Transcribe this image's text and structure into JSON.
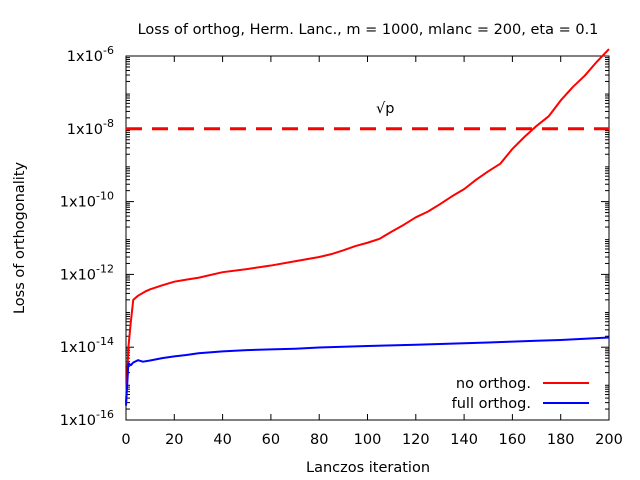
{
  "chart_data": {
    "type": "line",
    "title": "Loss of orthog, Herm. Lanc., m = 1000, mlanc = 200, eta = 0.1",
    "xlabel": "Lanczos iteration",
    "ylabel": "Loss of orthogonality",
    "xlim": [
      0,
      200
    ],
    "ylim": [
      1e-16,
      1e-06
    ],
    "yscale": "log",
    "grid": false,
    "legend_position": "bottom-right",
    "x_ticks": [
      0,
      20,
      40,
      60,
      80,
      100,
      120,
      140,
      160,
      180,
      200
    ],
    "x_tick_labels": [
      "0",
      "20",
      "40",
      "60",
      "80",
      "100",
      "120",
      "140",
      "160",
      "180",
      "200"
    ],
    "y_ticks": [
      1e-16,
      1e-14,
      1e-12,
      1e-10,
      1e-08,
      1e-06
    ],
    "y_tick_labels": [
      {
        "base": "1x10",
        "exp": "-16"
      },
      {
        "base": "1x10",
        "exp": "-14"
      },
      {
        "base": "1x10",
        "exp": "-12"
      },
      {
        "base": "1x10",
        "exp": "-10"
      },
      {
        "base": "1x10",
        "exp": "-8"
      },
      {
        "base": "1x10",
        "exp": "-6"
      }
    ],
    "reference_line": {
      "y": 1e-08,
      "color": "#ff0000",
      "style": "dashed",
      "label": "√p",
      "label_x": 106
    },
    "series": [
      {
        "name": "no orthog.",
        "color": "#ff0000",
        "x": [
          0,
          1,
          2,
          3,
          5,
          8,
          10,
          15,
          20,
          25,
          30,
          40,
          50,
          60,
          70,
          80,
          85,
          90,
          95,
          100,
          105,
          110,
          115,
          120,
          125,
          130,
          135,
          140,
          145,
          150,
          155,
          160,
          165,
          170,
          175,
          180,
          185,
          190,
          195,
          200
        ],
        "y": [
          3e-16,
          1e-14,
          5e-14,
          2e-13,
          2.6e-13,
          3.4e-13,
          3.9e-13,
          5e-13,
          6.3e-13,
          7.2e-13,
          8.1e-13,
          1.15e-12,
          1.4e-12,
          1.75e-12,
          2.3e-12,
          3e-12,
          3.6e-12,
          4.6e-12,
          6e-12,
          7.4e-12,
          9.5e-12,
          1.5e-11,
          2.3e-11,
          3.7e-11,
          5.3e-11,
          8.5e-11,
          1.4e-10,
          2.2e-10,
          4e-10,
          6.8e-10,
          1.1e-09,
          2.8e-09,
          6e-09,
          1.2e-08,
          2.2e-08,
          6e-08,
          1.4e-07,
          2.9e-07,
          7e-07,
          1.55e-06
        ]
      },
      {
        "name": "full orthog.",
        "color": "#0000ff",
        "x": [
          0,
          1,
          2,
          3,
          5,
          7,
          10,
          15,
          20,
          25,
          30,
          40,
          50,
          60,
          70,
          80,
          90,
          100,
          110,
          120,
          130,
          140,
          150,
          160,
          170,
          180,
          190,
          200
        ],
        "y": [
          2.5e-16,
          3.6e-15,
          3.2e-15,
          3.8e-15,
          4.4e-15,
          4e-15,
          4.3e-15,
          5e-15,
          5.6e-15,
          6.1e-15,
          6.8e-15,
          7.7e-15,
          8.3e-15,
          8.7e-15,
          9.1e-15,
          9.8e-15,
          1.03e-14,
          1.08e-14,
          1.12e-14,
          1.17e-14,
          1.22e-14,
          1.28e-14,
          1.35e-14,
          1.42e-14,
          1.5e-14,
          1.58e-14,
          1.7e-14,
          1.85e-14
        ]
      }
    ]
  }
}
